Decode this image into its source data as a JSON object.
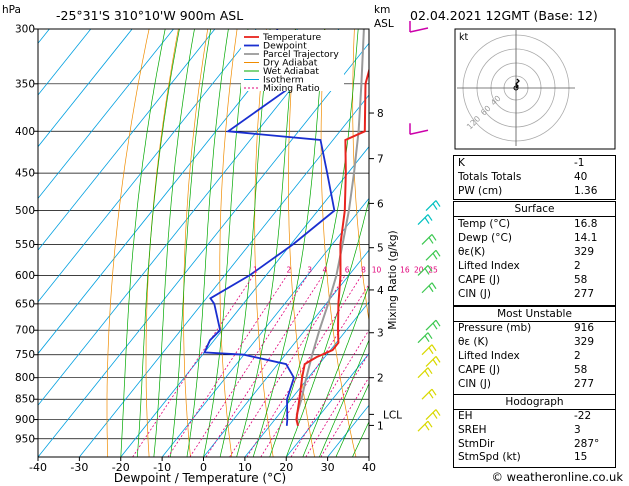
{
  "header": {
    "left_unit": "hPa",
    "location": "-25°31'S 310°10'W 900m ASL",
    "km_label": "km",
    "asl_label": "ASL",
    "datetime": "02.04.2021 12GMT (Base: 12)"
  },
  "legend": [
    "Temperature",
    "Dewpoint",
    "Parcel Trajectory",
    "Dry Adiabat",
    "Wet Adiabat",
    "Isotherm",
    "Mixing Ratio"
  ],
  "colors": {
    "temperature": "#e8231e",
    "dewpoint": "#1a2fd0",
    "parcel": "#9a9a9a",
    "dry_adiabat": "#f08c00",
    "wet_adiabat": "#00a800",
    "isotherm": "#00a0e0",
    "mixing_ratio": "#e0007a",
    "wind_low": "#d8d800",
    "wind_mid": "#3cc850",
    "wind_high": "#00c0c0",
    "wind_top": "#cc00aa"
  },
  "chart_data": {
    "type": "line",
    "xlabel": "Dewpoint / Temperature (°C)",
    "ylabel": "hPa",
    "x_ticks": [
      -40,
      -30,
      -20,
      -10,
      0,
      10,
      20,
      30,
      40
    ],
    "xlim": [
      -40,
      40
    ],
    "y_ticks": [
      300,
      350,
      400,
      450,
      500,
      550,
      600,
      650,
      700,
      750,
      800,
      850,
      900,
      950
    ],
    "ylim": [
      300,
      1000
    ],
    "skew": true,
    "km_ticks": [
      "1",
      "2",
      "3",
      "4",
      "5",
      "6",
      "7",
      "8"
    ],
    "km_pressures": [
      915,
      800,
      705,
      625,
      555,
      490,
      432,
      380
    ],
    "lcl_label": "LCL",
    "lcl_pressure": 887,
    "mixing_ratio_label": "Mixing Ratio (g/kg)",
    "mixing_ratio_values": [
      "1",
      "2",
      "3",
      "4",
      "6",
      "8",
      "10",
      "16",
      "20",
      "25"
    ],
    "series": [
      {
        "name": "Temperature",
        "p": [
          916,
          900,
          850,
          800,
          770,
          755,
          740,
          725,
          700,
          650,
          600,
          550,
          500,
          450,
          410,
          400,
          350,
          300
        ],
        "t": [
          16.8,
          15.2,
          12.0,
          8.5,
          6.5,
          8.0,
          10.5,
          10.5,
          8.0,
          3.0,
          -2.0,
          -8.0,
          -13.5,
          -20.5,
          -27.0,
          -24.0,
          -33.0,
          -40.0
        ]
      },
      {
        "name": "Dewpoint",
        "p": [
          916,
          900,
          850,
          800,
          770,
          750,
          745,
          720,
          700,
          650,
          640,
          600,
          550,
          500,
          450,
          410,
          400,
          350,
          300
        ],
        "t": [
          14.1,
          13.0,
          9.0,
          6.5,
          2.0,
          -10.0,
          -20.0,
          -21.0,
          -20.5,
          -27.0,
          -29.0,
          -24.0,
          -19.5,
          -16.0,
          -25.0,
          -33.0,
          -57.0,
          -50.0,
          -65.0
        ]
      },
      {
        "name": "Parcel Trajectory",
        "p": [
          916,
          887,
          850,
          800,
          750,
          700,
          650,
          600,
          550,
          500,
          450,
          400,
          350,
          300
        ],
        "t": [
          16.8,
          14.3,
          12.5,
          9.5,
          6.5,
          3.5,
          0.5,
          -3.0,
          -7.5,
          -12.5,
          -18.5,
          -25.5,
          -34.0,
          -44.0
        ]
      }
    ]
  },
  "hodograph": {
    "unit_label": "kt",
    "ring_labels": [
      "40",
      "60",
      "120"
    ]
  },
  "indices": {
    "k_label": "K",
    "k_value": "-1",
    "tt_label": "Totals Totals",
    "tt_value": "40",
    "pw_label": "PW (cm)",
    "pw_value": "1.36"
  },
  "surface": {
    "title": "Surface",
    "temp_label": "Temp (°C)",
    "temp_value": "16.8",
    "dewp_label": "Dewp (°C)",
    "dewp_value": "14.1",
    "thetae_label": "θε(K)",
    "thetae_value": "329",
    "li_label": "Lifted Index",
    "li_value": "2",
    "cape_label": "CAPE (J)",
    "cape_value": "58",
    "cin_label": "CIN (J)",
    "cin_value": "277"
  },
  "most_unstable": {
    "title": "Most Unstable",
    "pressure_label": "Pressure (mb)",
    "pressure_value": "916",
    "thetae_label": "θε (K)",
    "thetae_value": "329",
    "li_label": "Lifted Index",
    "li_value": "2",
    "cape_label": "CAPE (J)",
    "cape_value": "58",
    "cin_label": "CIN (J)",
    "cin_value": "277"
  },
  "hodo_indices": {
    "title": "Hodograph",
    "eh_label": "EH",
    "eh_value": "-22",
    "sreh_label": "SREH",
    "sreh_value": "3",
    "stmdir_label": "StmDir",
    "stmdir_value": "287°",
    "stmspd_label": "StmSpd (kt)",
    "stmspd_value": "15"
  },
  "footer": {
    "copyright": "© weatheronline.co.uk"
  }
}
